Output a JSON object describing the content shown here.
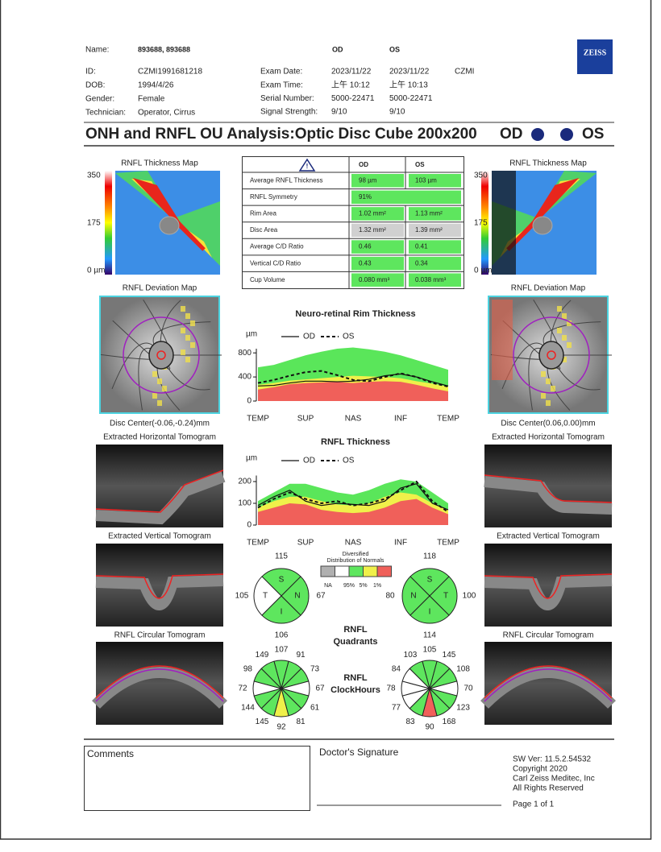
{
  "header": {
    "patient": [
      {
        "label": "Name:",
        "value": "893688, 893688"
      },
      {
        "label": "ID:",
        "value": "CZMI1991681218"
      },
      {
        "label": "DOB:",
        "value": "1994/4/26"
      },
      {
        "label": "Gender:",
        "value": "Female"
      },
      {
        "label": "Technician:",
        "value": "Operator, Cirrus"
      }
    ],
    "eyes": [
      "OD",
      "OS"
    ],
    "exam": [
      {
        "label": "Exam Date:",
        "od": "2023/11/22",
        "os": "2023/11/22"
      },
      {
        "label": "Exam Time:",
        "od": "上午 10:12",
        "os": "上午 10:13"
      },
      {
        "label": "Serial Number:",
        "od": "5000-22471",
        "os": "5000-22471"
      },
      {
        "label": "Signal Strength:",
        "od": "9/10",
        "os": "9/10"
      }
    ],
    "site": "CZMI",
    "logo": "ZEISS"
  },
  "report_title": {
    "text": "ONH and RNFL OU Analysis:Optic Disc Cube 200x200",
    "od": "OD",
    "os": "OS"
  },
  "maps": {
    "thickness_title": "RNFL Thickness Map",
    "scale": [
      "350",
      "175",
      "0 µm"
    ],
    "deviation_title": "RNFL Deviation Map",
    "disc_center": {
      "od": "Disc Center(-0.06,-0.24)mm",
      "os": "Disc Center(0.06,0.00)mm"
    },
    "tomograms": [
      "Extracted Horizontal Tomogram",
      "Extracted Vertical Tomogram",
      "RNFL Circular Tomogram"
    ]
  },
  "table": {
    "columns": [
      "OD",
      "OS"
    ],
    "rows": [
      [
        "Average RNFL Thickness",
        "98 µm",
        "103 µm"
      ],
      [
        "RNFL Symmetry",
        "91%"
      ],
      [
        "Rim Area",
        "1.02 mm²",
        "1.13 mm²"
      ],
      [
        "Disc Area",
        "1.32 mm²",
        "1.39 mm²"
      ],
      [
        "Average C/D Ratio",
        "0.46",
        "0.41"
      ],
      [
        "Vertical C/D Ratio",
        "0.43",
        "0.34"
      ],
      [
        "Cup Volume",
        "0.080 mm³",
        "0.038 mm³"
      ]
    ],
    "cell_colors": [
      "#5ee65e",
      "#5ee65e",
      "#5ee65e",
      "#d0d0d0",
      "#5ee65e",
      "#5ee65e",
      "#5ee65e"
    ]
  },
  "rim_chart": {
    "title": "Neuro-retinal Rim Thickness",
    "unit": "µm",
    "xlabels": [
      "TEMP",
      "SUP",
      "NAS",
      "INF",
      "TEMP"
    ],
    "ylim": [
      0,
      950
    ],
    "yticks": [
      0,
      400,
      800
    ],
    "bands": [
      {
        "color": "#5ae65a",
        "values": [
          560,
          600,
          680,
          760,
          820,
          870,
          890,
          860,
          820,
          760,
          680,
          600,
          520
        ]
      },
      {
        "color": "#f0f04a",
        "values": [
          270,
          300,
          340,
          360,
          380,
          400,
          420,
          410,
          400,
          380,
          330,
          290,
          240
        ]
      },
      {
        "color": "#f0605a",
        "values": [
          190,
          230,
          280,
          300,
          310,
          320,
          300,
          320,
          330,
          320,
          270,
          210,
          160
        ]
      }
    ],
    "series": [
      {
        "name": "OD",
        "dashed": false,
        "values": [
          250,
          260,
          300,
          330,
          330,
          320,
          330,
          360,
          420,
          450,
          400,
          320,
          250
        ]
      },
      {
        "name": "OS",
        "dashed": true,
        "values": [
          300,
          350,
          420,
          480,
          500,
          430,
          350,
          330,
          400,
          460,
          400,
          300,
          240
        ]
      }
    ]
  },
  "rnfl_chart": {
    "title": "RNFL Thickness",
    "unit": "µm",
    "xlabels": [
      "TEMP",
      "SUP",
      "NAS",
      "INF",
      "TEMP"
    ],
    "ylim": [
      0,
      250
    ],
    "yticks": [
      0,
      100,
      200
    ],
    "bands": [
      {
        "color": "#5ae65a",
        "values": [
          110,
          150,
          190,
          190,
          170,
          150,
          140,
          160,
          190,
          210,
          200,
          150,
          100
        ]
      },
      {
        "color": "#f0f04a",
        "values": [
          80,
          110,
          130,
          130,
          110,
          95,
          90,
          100,
          130,
          150,
          140,
          100,
          70
        ]
      },
      {
        "color": "#f0605a",
        "values": [
          60,
          80,
          100,
          95,
          70,
          60,
          55,
          60,
          80,
          110,
          120,
          80,
          50
        ]
      }
    ],
    "series": [
      {
        "name": "OD",
        "dashed": false,
        "values": [
          90,
          130,
          160,
          110,
          90,
          100,
          95,
          90,
          110,
          170,
          190,
          100,
          70
        ]
      },
      {
        "name": "OS",
        "dashed": true,
        "values": [
          80,
          120,
          150,
          120,
          100,
          110,
          90,
          100,
          120,
          160,
          200,
          110,
          60
        ]
      }
    ]
  },
  "quadrants": {
    "title": [
      "RNFL",
      "Quadrants"
    ],
    "od": [
      {
        "label": "S",
        "value": 115,
        "color": "#5ee65e"
      },
      {
        "label": "T",
        "value": 105,
        "color": "#ffffff"
      },
      {
        "label": "N",
        "value": 67,
        "color": "#5ee65e"
      },
      {
        "label": "I",
        "value": 106,
        "color": "#5ee65e"
      }
    ],
    "os": [
      {
        "label": "S",
        "value": 118,
        "color": "#5ee65e"
      },
      {
        "label": "N",
        "value": 80,
        "color": "#5ee65e"
      },
      {
        "label": "T",
        "value": 100,
        "color": "#5ee65e"
      },
      {
        "label": "I",
        "value": 114,
        "color": "#5ee65e"
      }
    ]
  },
  "normals_legend": {
    "title": [
      "Diversified",
      "Distribution of Normals"
    ],
    "colors": [
      "#b0b0b0",
      "#ffffff",
      "#5ee65e",
      "#f0f04a",
      "#f0605a"
    ],
    "labels": [
      "NA",
      "95%",
      "5%",
      "1%"
    ]
  },
  "clock": {
    "title": [
      "RNFL",
      "ClockHours"
    ],
    "od": [
      {
        "value": 107,
        "color": "#5ee65e"
      },
      {
        "value": 91,
        "color": "#5ee65e"
      },
      {
        "value": 73,
        "color": "#5ee65e"
      },
      {
        "value": 67,
        "color": "#ffffff"
      },
      {
        "value": 61,
        "color": "#5ee65e"
      },
      {
        "value": 81,
        "color": "#5ee65e"
      },
      {
        "value": 92,
        "color": "#f0f04a"
      },
      {
        "value": 145,
        "color": "#5ee65e"
      },
      {
        "value": 144,
        "color": "#5ee65e"
      },
      {
        "value": 72,
        "color": "#ffffff"
      },
      {
        "value": 98,
        "color": "#5ee65e"
      },
      {
        "value": 149,
        "color": "#5ee65e"
      }
    ],
    "os": [
      {
        "value": 105,
        "color": "#5ee65e"
      },
      {
        "value": 145,
        "color": "#5ee65e"
      },
      {
        "value": 108,
        "color": "#5ee65e"
      },
      {
        "value": 70,
        "color": "#ffffff"
      },
      {
        "value": 123,
        "color": "#5ee65e"
      },
      {
        "value": 168,
        "color": "#5ee65e"
      },
      {
        "value": 90,
        "color": "#f0605a"
      },
      {
        "value": 83,
        "color": "#5ee65e"
      },
      {
        "value": 77,
        "color": "#ffffff"
      },
      {
        "value": 78,
        "color": "#ffffff"
      },
      {
        "value": 84,
        "color": "#ffffff"
      },
      {
        "value": 103,
        "color": "#5ee65e"
      }
    ]
  },
  "footer": {
    "comments": "Comments",
    "signature": "Doctor's Signature",
    "info": [
      "SW Ver: 11.5.2.54532",
      "Copyright 2020",
      "Carl Zeiss Meditec, Inc",
      "All Rights Reserved"
    ],
    "page": "Page 1 of 1"
  }
}
